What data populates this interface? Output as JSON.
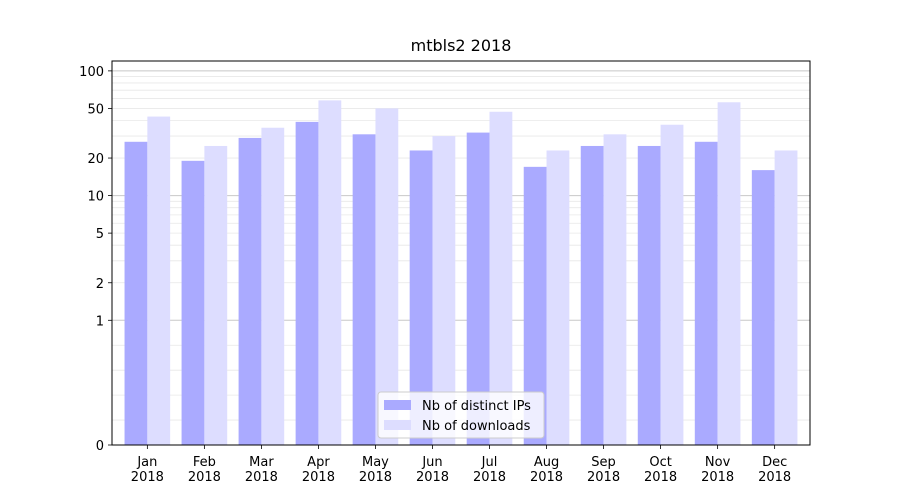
{
  "chart_data": {
    "type": "bar",
    "title": "mtbls2 2018",
    "xlabel": "",
    "ylabel": "",
    "y_scale": "symlog",
    "ylim": [
      0,
      120
    ],
    "y_ticks": [
      0,
      1,
      2,
      5,
      10,
      20,
      50,
      100
    ],
    "grid": true,
    "legend_position": "bottom-center",
    "categories": [
      "Jan\n2018",
      "Feb\n2018",
      "Mar\n2018",
      "Apr\n2018",
      "May\n2018",
      "Jun\n2018",
      "Jul\n2018",
      "Aug\n2018",
      "Sep\n2018",
      "Oct\n2018",
      "Nov\n2018",
      "Dec\n2018"
    ],
    "series": [
      {
        "name": "Nb of distinct IPs",
        "color": "#aaaaff",
        "values": [
          27,
          19,
          29,
          39,
          31,
          23,
          32,
          17,
          25,
          25,
          27,
          16
        ]
      },
      {
        "name": "Nb of downloads",
        "color": "#ddddff",
        "values": [
          43,
          25,
          35,
          58,
          50,
          30,
          47,
          23,
          31,
          37,
          56,
          23
        ]
      }
    ]
  }
}
